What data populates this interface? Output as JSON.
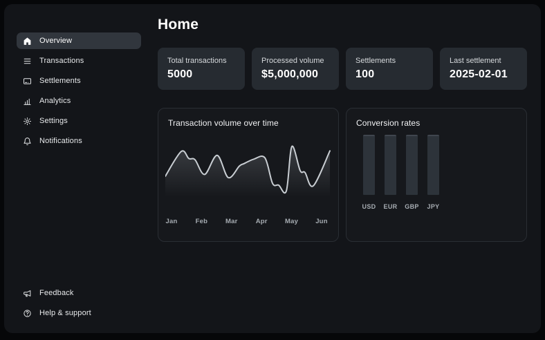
{
  "header": {
    "title": "Home"
  },
  "sidebar": {
    "items": [
      {
        "label": "Overview",
        "icon": "home",
        "selected": true
      },
      {
        "label": "Transactions",
        "icon": "list",
        "selected": false
      },
      {
        "label": "Settlements",
        "icon": "credit-card",
        "selected": false
      },
      {
        "label": "Analytics",
        "icon": "bar-chart",
        "selected": false
      },
      {
        "label": "Settings",
        "icon": "gear",
        "selected": false
      },
      {
        "label": "Notifications",
        "icon": "bell",
        "selected": false
      }
    ],
    "footer_items": [
      {
        "label": "Feedback",
        "icon": "megaphone",
        "selected": false
      },
      {
        "label": "Help & support",
        "icon": "help-circle",
        "selected": false
      }
    ]
  },
  "stats": [
    {
      "label": "Total transactions",
      "value": "5000"
    },
    {
      "label": "Processed volume",
      "value": "$5,000,000"
    },
    {
      "label": "Settlements",
      "value": "100"
    },
    {
      "label": "Last settlement",
      "value": "2025-02-01"
    }
  ],
  "chart_data": [
    {
      "id": "volume",
      "type": "line",
      "title": "Transaction volume over time",
      "x_labels": [
        "Jan",
        "Feb",
        "Mar",
        "Apr",
        "May",
        "Jun"
      ],
      "note": "No y-axis shown; values are relative volume 0-100 read from curve shape, x is px offset 0-238 across Jan-Jun",
      "points": [
        [
          0,
          39
        ],
        [
          23,
          78
        ],
        [
          34,
          67
        ],
        [
          43,
          65
        ],
        [
          57,
          42
        ],
        [
          75,
          72
        ],
        [
          91,
          37
        ],
        [
          107,
          55
        ],
        [
          114,
          59
        ],
        [
          128,
          66
        ],
        [
          144,
          68
        ],
        [
          155,
          28
        ],
        [
          164,
          25
        ],
        [
          175,
          16
        ],
        [
          183,
          86
        ],
        [
          195,
          48
        ],
        [
          202,
          45
        ],
        [
          214,
          24
        ],
        [
          238,
          79
        ]
      ]
    },
    {
      "id": "conversion",
      "type": "bar",
      "title": "Conversion rates",
      "categories": [
        "USD",
        "EUR",
        "GBP",
        "JPY"
      ],
      "values": [
        1,
        1,
        1,
        1
      ],
      "note": "All four bars rendered at equal height; no y-axis or value labels shown"
    }
  ],
  "colors": {
    "line_stroke": "#c9ced3",
    "line_fill_top": "rgba(190,196,203,0.22)",
    "bar_fill": "#2d333a",
    "card_bg": "#262b31",
    "panel_bg": "#131519"
  }
}
